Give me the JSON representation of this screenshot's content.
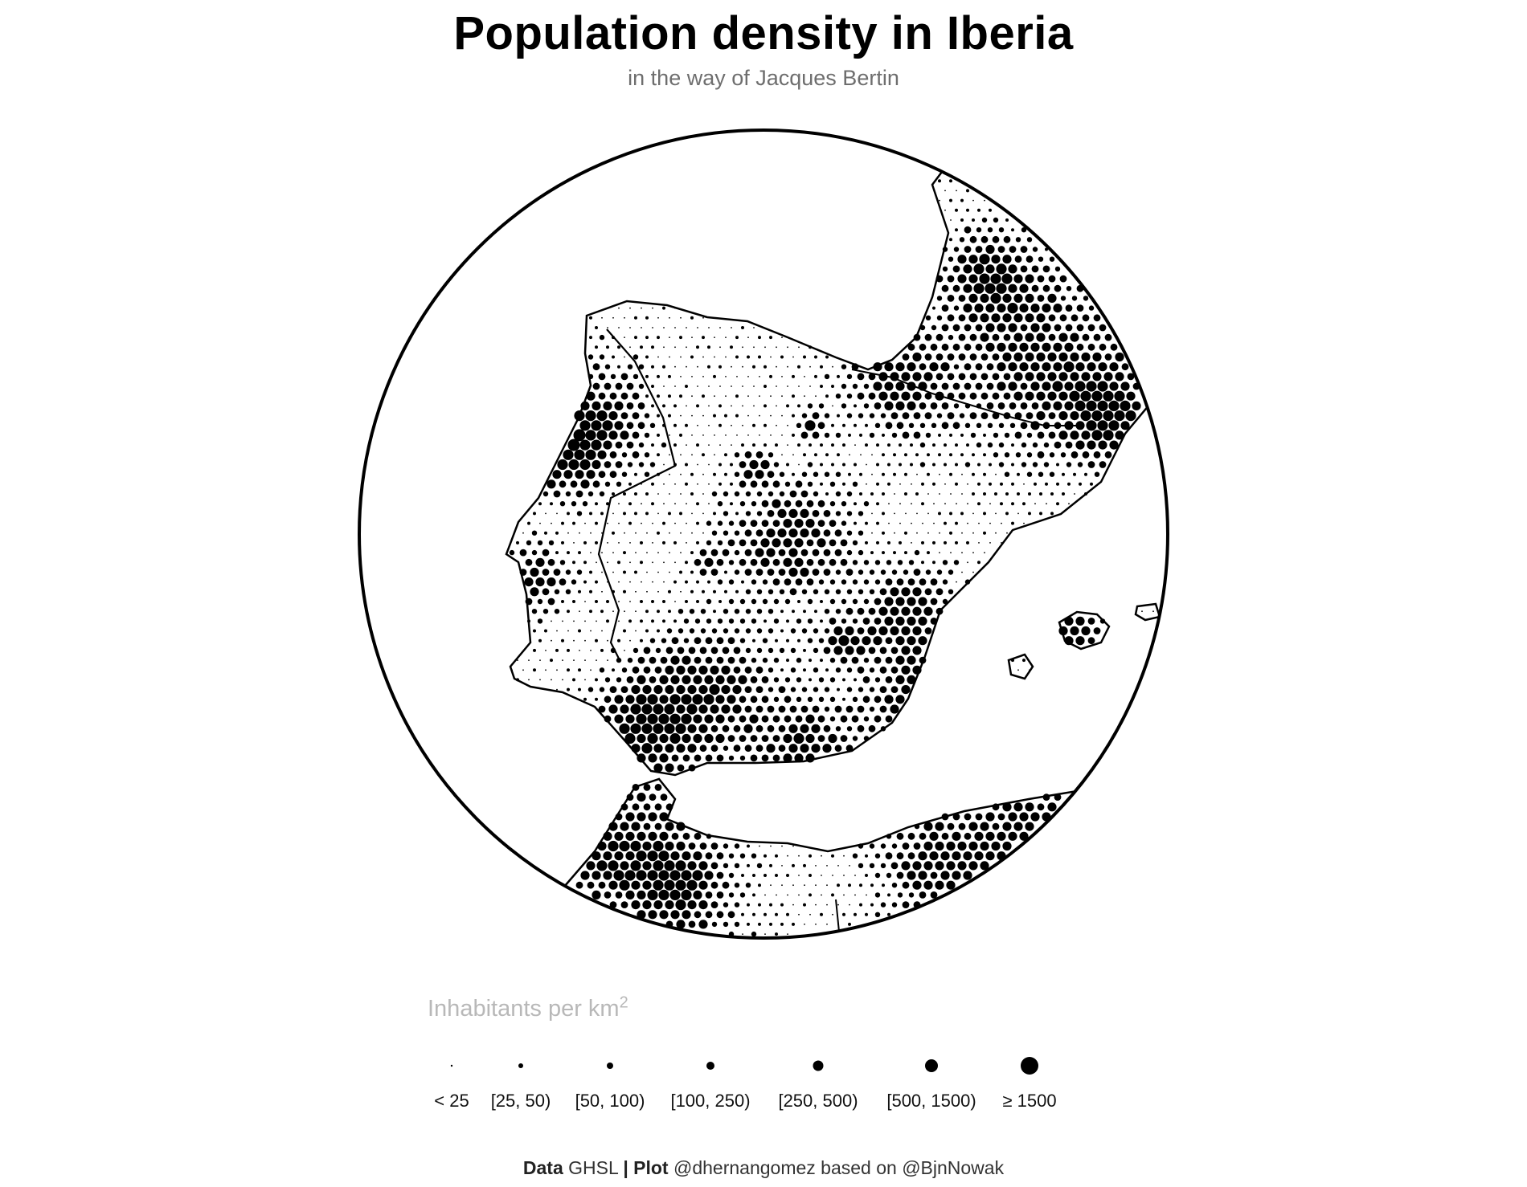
{
  "title": "Population density in Iberia",
  "subtitle": "in the way of Jacques Bertin",
  "legend": {
    "title": "Inhabitants per km",
    "title_sup": "2",
    "classes": [
      {
        "label": "< 25",
        "level": 0
      },
      {
        "label": "[25, 50)",
        "level": 1
      },
      {
        "label": "[50, 100)",
        "level": 2
      },
      {
        "label": "[100, 250)",
        "level": 3
      },
      {
        "label": "[250, 500)",
        "level": 4
      },
      {
        "label": "[500, 1500)",
        "level": 5
      },
      {
        "label": "≥ 1500",
        "level": 6
      }
    ]
  },
  "caption": {
    "data_label": "Data",
    "data_value": "GHSL",
    "separator": "|",
    "plot_label": "Plot",
    "plot_value": "@dhernangomez based on @BjnNowak"
  },
  "colors": {
    "ink": "#000000",
    "paper": "#ffffff",
    "subtitle": "#6e6e6e",
    "legend_title": "#b8b8b8"
  }
}
